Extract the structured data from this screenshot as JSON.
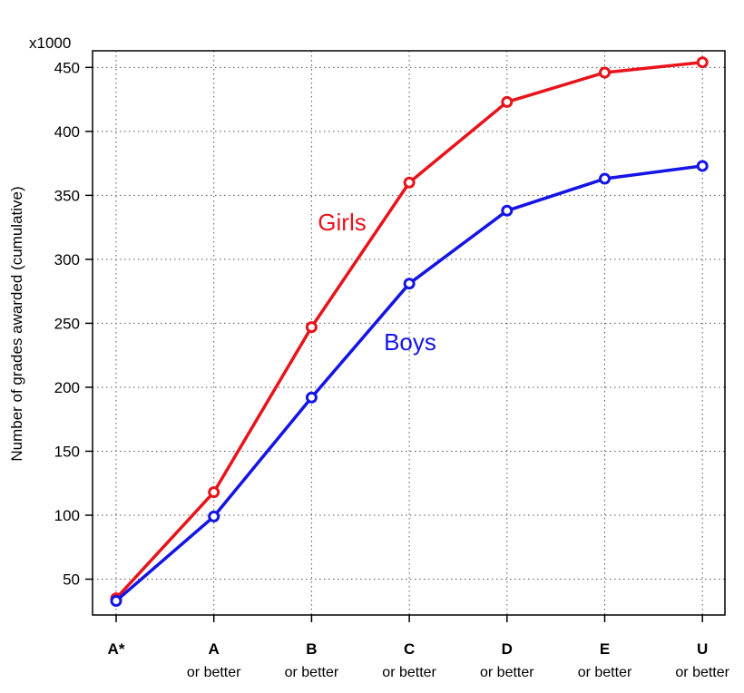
{
  "chart_data": {
    "type": "line",
    "ylabel": "Number of grades awarded (cumulative)",
    "y_multiplier_label": "x1000",
    "ylim": [
      22,
      463
    ],
    "yticks": [
      50,
      100,
      150,
      200,
      250,
      300,
      350,
      400,
      450
    ],
    "grid": true,
    "categories": [
      {
        "label": "A*",
        "sub": ""
      },
      {
        "label": "A",
        "sub": "or better"
      },
      {
        "label": "B",
        "sub": "or better"
      },
      {
        "label": "C",
        "sub": "or better"
      },
      {
        "label": "D",
        "sub": "or better"
      },
      {
        "label": "E",
        "sub": "or better"
      },
      {
        "label": "U",
        "sub": "or better"
      }
    ],
    "series": [
      {
        "name": "Girls",
        "color": "#e8131b",
        "values": [
          35,
          118,
          247,
          360,
          423,
          446,
          454
        ]
      },
      {
        "name": "Boys",
        "color": "#1414e6",
        "values": [
          33,
          99,
          192,
          281,
          338,
          363,
          373
        ]
      }
    ]
  }
}
